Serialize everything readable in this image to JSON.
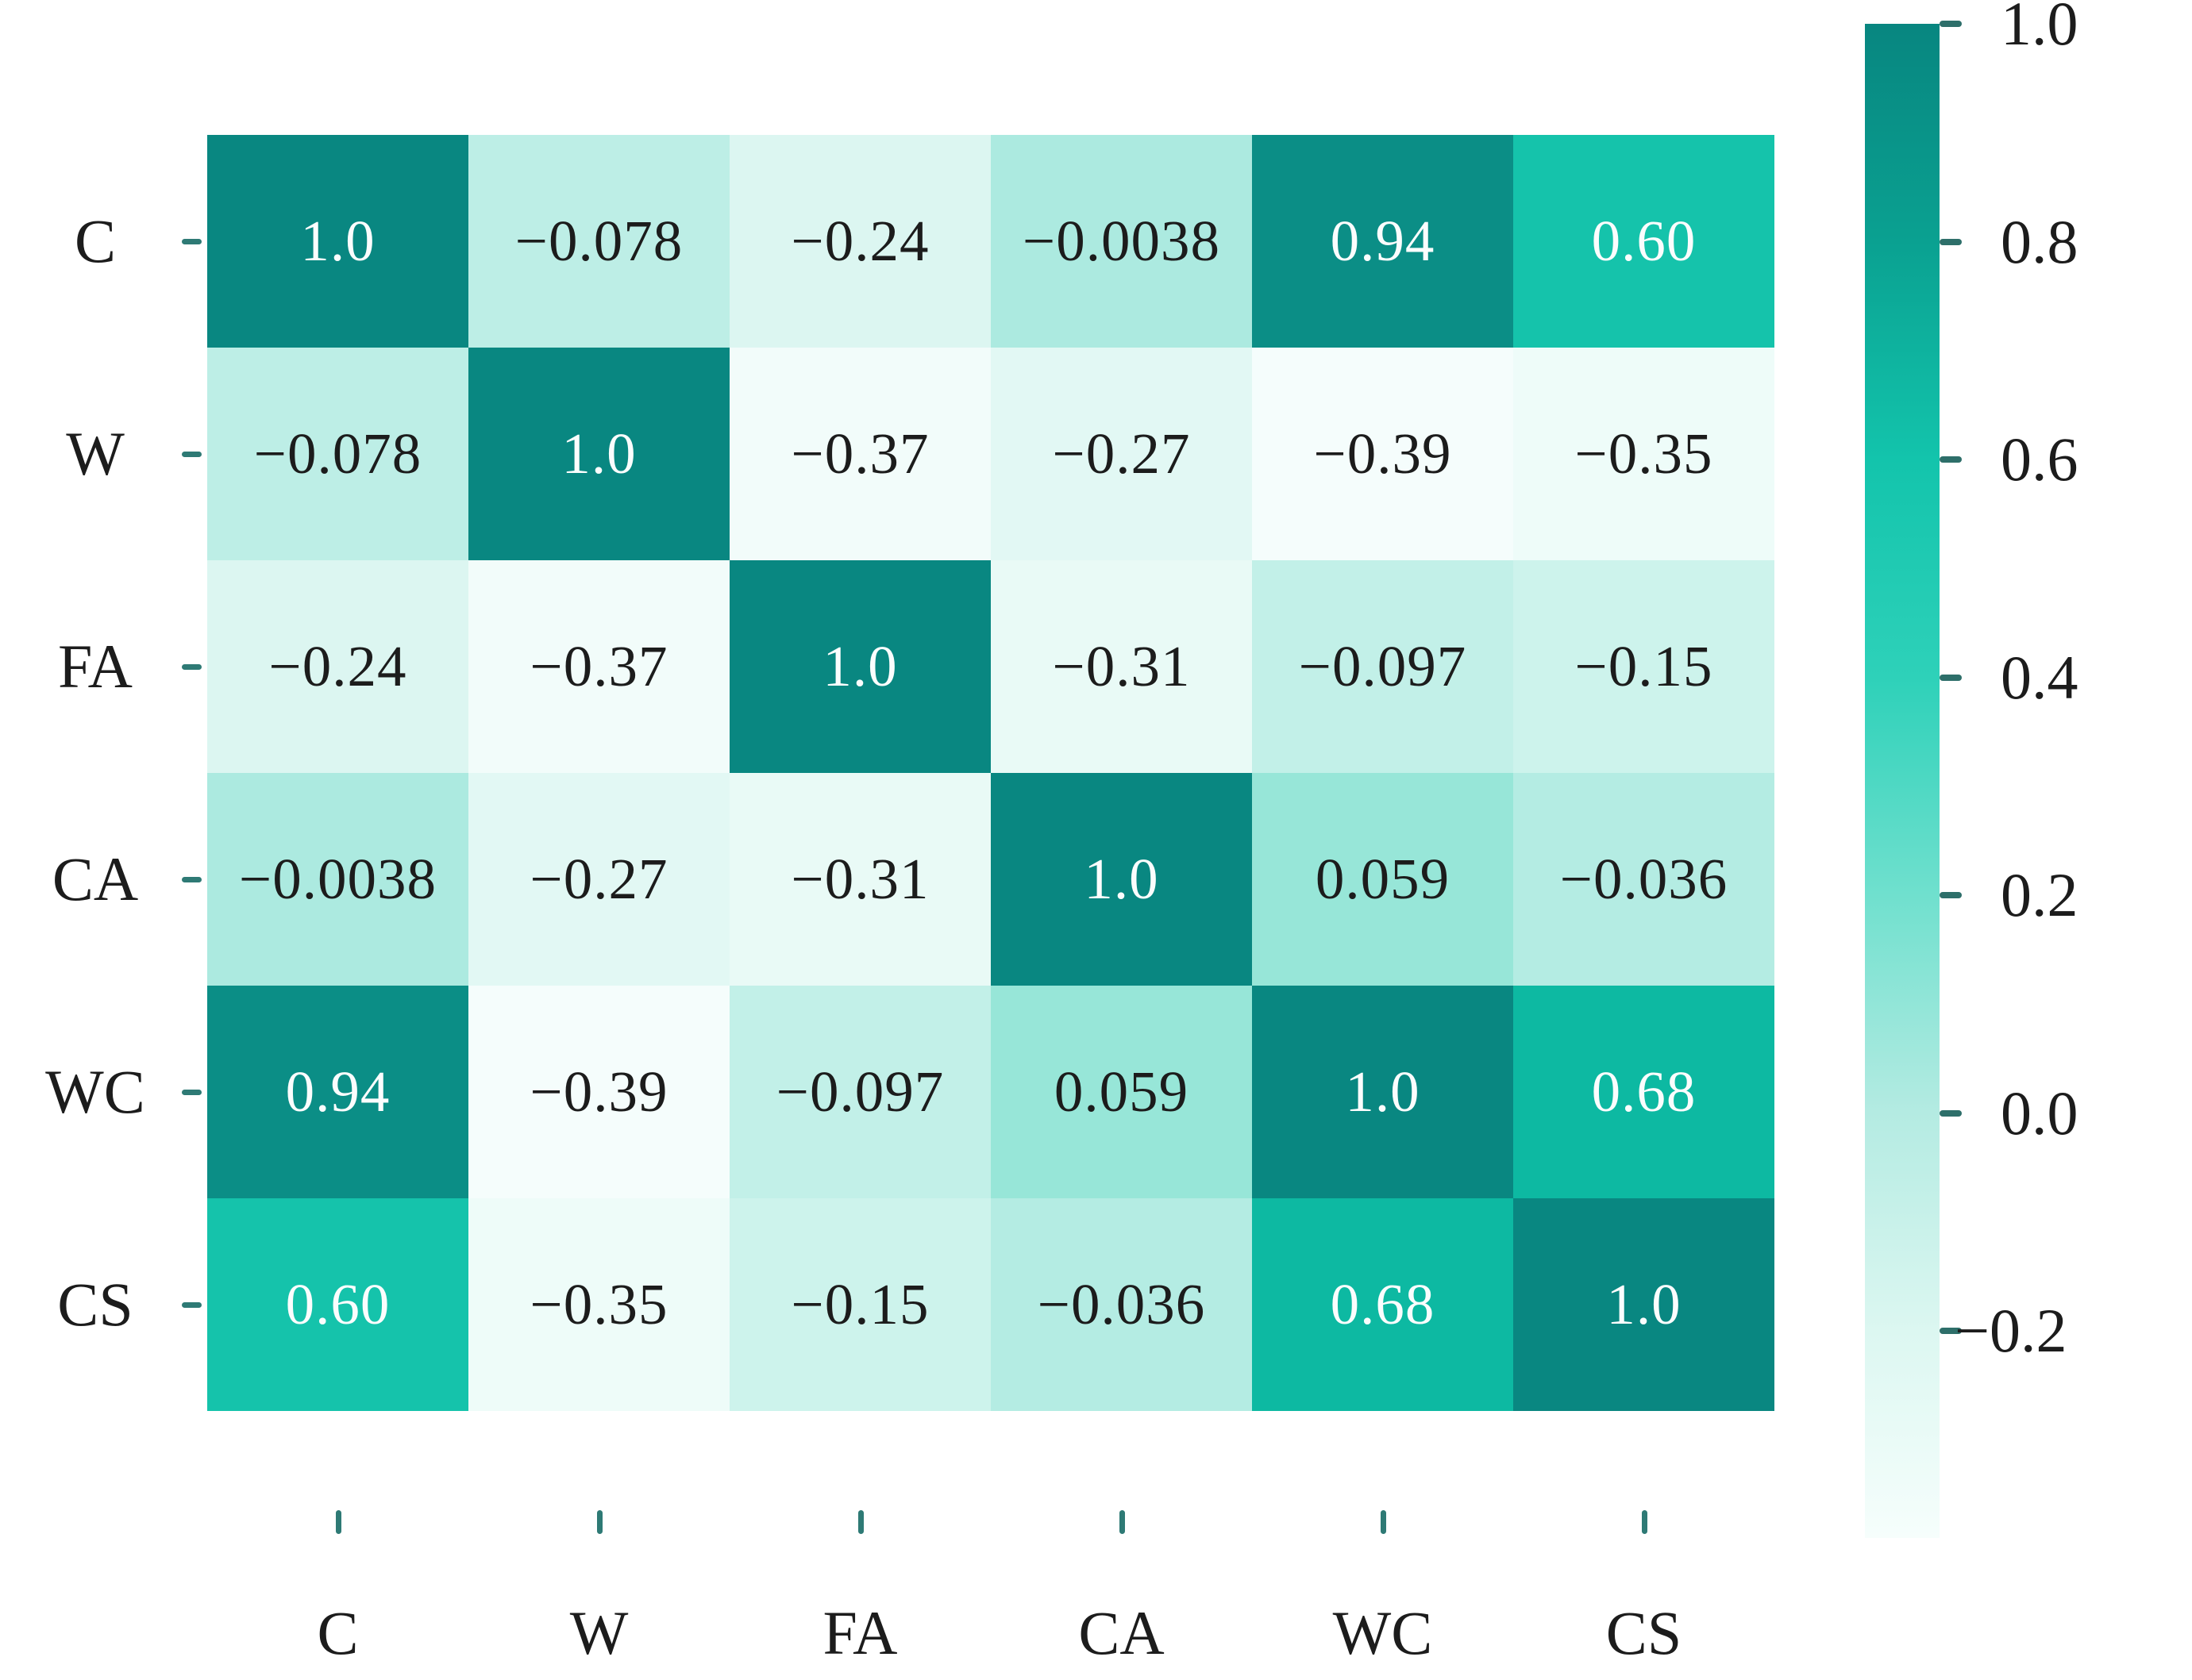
{
  "chart_data": {
    "type": "heatmap",
    "title": "",
    "description": "Correlation matrix heatmap, 6 variables, teal sequential colormap",
    "categories": [
      "C",
      "W",
      "FA",
      "CA",
      "WC",
      "CS"
    ],
    "x_axis_labels": [
      "C",
      "W",
      "FA",
      "CA",
      "WC",
      "CS"
    ],
    "y_axis_labels": [
      "C",
      "W",
      "FA",
      "CA",
      "WC",
      "CS"
    ],
    "matrix_values": [
      [
        1.0,
        -0.078,
        -0.24,
        -0.0038,
        0.94,
        0.6
      ],
      [
        -0.078,
        1.0,
        -0.37,
        -0.27,
        -0.39,
        -0.35
      ],
      [
        -0.24,
        -0.37,
        1.0,
        -0.31,
        -0.097,
        -0.15
      ],
      [
        -0.0038,
        -0.27,
        -0.31,
        1.0,
        0.059,
        -0.036
      ],
      [
        0.94,
        -0.39,
        -0.097,
        0.059,
        1.0,
        0.68
      ],
      [
        0.6,
        -0.35,
        -0.15,
        -0.036,
        0.68,
        1.0
      ]
    ],
    "matrix_text": [
      [
        "1.0",
        "−0.078",
        "−0.24",
        "−0.0038",
        "0.94",
        "0.60"
      ],
      [
        "−0.078",
        "1.0",
        "−0.37",
        "−0.27",
        "−0.39",
        "−0.35"
      ],
      [
        "−0.24",
        "−0.37",
        "1.0",
        "−0.31",
        "−0.097",
        "−0.15"
      ],
      [
        "−0.0038",
        "−0.27",
        "−0.31",
        "1.0",
        "0.059",
        "−0.036"
      ],
      [
        "0.94",
        "−0.39",
        "−0.097",
        "0.059",
        "1.0",
        "0.68"
      ],
      [
        "0.60",
        "−0.35",
        "−0.15",
        "−0.036",
        "0.68",
        "1.0"
      ]
    ],
    "cell_colors": [
      [
        "#098781",
        "#bdeee6",
        "#dcf6f1",
        "#aceae0",
        "#0b8e86",
        "#15c3ab"
      ],
      [
        "#bdeee6",
        "#098781",
        "#f2fcfa",
        "#e2f8f4",
        "#f5fdfc",
        "#eefcf9"
      ],
      [
        "#dcf6f1",
        "#f2fcfa",
        "#098781",
        "#e9faf6",
        "#c2f0e8",
        "#cdf3ec"
      ],
      [
        "#aceae0",
        "#e2f8f4",
        "#e9faf6",
        "#098781",
        "#97e6d8",
        "#b4ece3"
      ],
      [
        "#0b8e86",
        "#f5fdfc",
        "#c2f0e8",
        "#97e6d8",
        "#098781",
        "#0db9a2"
      ],
      [
        "#15c3ab",
        "#eefcf9",
        "#cdf3ec",
        "#b4ece3",
        "#0db9a2",
        "#098781"
      ]
    ],
    "value_text_rule": {
      "white_if_value_gte": 0.5,
      "light_color": "#fbfdfd",
      "dark_color": "#1c1c1c"
    },
    "tick_color": "#2e7a75",
    "colorbar": {
      "vmin": -0.39,
      "vmax": 1.0,
      "ticks": [
        {
          "label": "1.0",
          "value": 1.0
        },
        {
          "label": "0.8",
          "value": 0.8
        },
        {
          "label": "0.6",
          "value": 0.6
        },
        {
          "label": "0.4",
          "value": 0.4
        },
        {
          "label": "0.2",
          "value": 0.2
        },
        {
          "label": "0.0",
          "value": 0.0
        },
        {
          "label": "−0.2",
          "value": -0.2
        }
      ],
      "tick_mark_color": "#2e6f6a",
      "gradient": [
        {
          "at": 0.0,
          "color": "#088680"
        },
        {
          "at": 0.144,
          "color": "#0aa191"
        },
        {
          "at": 0.288,
          "color": "#13c4ac"
        },
        {
          "at": 0.432,
          "color": "#2ed1b9"
        },
        {
          "at": 0.576,
          "color": "#70e0ce"
        },
        {
          "at": 0.719,
          "color": "#b4ebe2"
        },
        {
          "at": 0.863,
          "color": "#dcf7f1"
        },
        {
          "at": 1.0,
          "color": "#f6fefc"
        }
      ],
      "legend_position": "right"
    },
    "grid": false,
    "background_color": "#ffffff"
  }
}
